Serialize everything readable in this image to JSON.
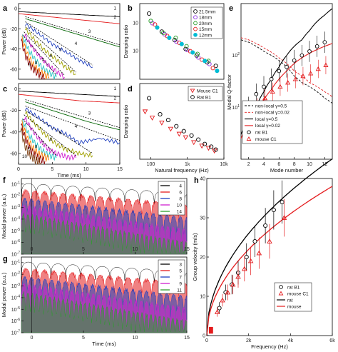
{
  "chart_data": [
    {
      "panel": "a",
      "type": "line",
      "xlabel": "",
      "ylabel": "Power (dB)",
      "xlim": [
        0,
        15
      ],
      "ylim": [
        -70,
        5
      ],
      "yticks": [
        -60,
        -40,
        -20,
        0
      ],
      "curve_labels": [
        "1",
        "2",
        "3",
        "4",
        "5",
        "6",
        "7",
        "8",
        "9"
      ],
      "colors": [
        "#000000",
        "#e41a1c",
        "#006400",
        "#1f3fbf",
        "#a0a000",
        "#d020d0",
        "#20c0c0",
        "#ff7f00",
        "#8b0000"
      ],
      "series": [
        {
          "name": "1",
          "x": [
            0,
            3,
            6,
            9,
            12,
            15
          ],
          "y": [
            -3,
            -4,
            -5,
            -6,
            -7,
            -8
          ]
        },
        {
          "name": "2",
          "x": [
            0,
            3,
            6,
            9,
            12,
            15
          ],
          "y": [
            -5,
            -7,
            -9,
            -11,
            -13,
            -15
          ]
        },
        {
          "name": "3",
          "x": [
            1,
            4,
            7,
            10,
            13,
            15
          ],
          "y": [
            -10,
            -16,
            -22,
            -28,
            -34,
            -38
          ]
        },
        {
          "name": "4",
          "x": [
            1,
            3,
            5,
            7,
            9,
            11
          ],
          "y": [
            -15,
            -25,
            -35,
            -43,
            -51,
            -58
          ]
        },
        {
          "name": "5",
          "x": [
            1,
            2.5,
            4,
            5.5,
            7,
            8.5
          ],
          "y": [
            -20,
            -32,
            -42,
            -50,
            -58,
            -65
          ]
        },
        {
          "name": "6",
          "x": [
            0.8,
            2,
            3.2,
            4.4,
            5.6,
            6.8
          ],
          "y": [
            -25,
            -38,
            -48,
            -56,
            -62,
            -68
          ]
        },
        {
          "name": "7",
          "x": [
            0.6,
            1.6,
            2.6,
            3.6,
            4.6,
            5.6
          ],
          "y": [
            -28,
            -42,
            -52,
            -59,
            -64,
            -68
          ]
        },
        {
          "name": "8",
          "x": [
            0.5,
            1.3,
            2.1,
            2.9,
            3.7,
            4.5
          ],
          "y": [
            -30,
            -45,
            -55,
            -61,
            -65,
            -68
          ]
        },
        {
          "name": "9",
          "x": [
            0.4,
            1.1,
            1.8,
            2.5,
            3.2,
            3.9
          ],
          "y": [
            -32,
            -48,
            -57,
            -62,
            -66,
            -69
          ]
        }
      ]
    },
    {
      "panel": "b",
      "type": "scatter",
      "xlabel": "",
      "ylabel": "Damping ratio",
      "xscale": "log",
      "yscale": "log",
      "xlim": [
        50,
        10000
      ],
      "ylim": [
        0.001,
        0.5
      ],
      "legend": [
        "21.5mm",
        "18mm",
        "20mm",
        "15mm",
        "12mm"
      ],
      "legend_colors": [
        "#000000",
        "#8a2be2",
        "#2ca02c",
        "#e41a1c",
        "#00bcd4"
      ],
      "series": [
        {
          "name": "21.5mm",
          "x": [
            90,
            200,
            450,
            900,
            1800,
            3500,
            6000
          ],
          "y": [
            0.22,
            0.05,
            0.025,
            0.012,
            0.007,
            0.004,
            0.003
          ]
        },
        {
          "name": "18mm",
          "x": [
            110,
            240,
            500,
            1000,
            2000,
            4000
          ],
          "y": [
            0.1,
            0.04,
            0.022,
            0.011,
            0.006,
            0.0035
          ]
        },
        {
          "name": "20mm",
          "x": [
            100,
            220,
            480,
            950,
            1900,
            3800
          ],
          "y": [
            0.12,
            0.045,
            0.03,
            0.015,
            0.008,
            0.0045
          ]
        },
        {
          "name": "15mm",
          "x": [
            130,
            280,
            600,
            1200,
            2500,
            5000
          ],
          "y": [
            0.09,
            0.035,
            0.02,
            0.01,
            0.005,
            0.0025
          ]
        },
        {
          "name": "12mm",
          "x": [
            150,
            320,
            700,
            1400,
            3000,
            6500
          ],
          "y": [
            0.07,
            0.03,
            0.018,
            0.009,
            0.0045,
            0.002
          ]
        }
      ]
    },
    {
      "panel": "c",
      "type": "line",
      "xlabel": "Time (ms)",
      "ylabel": "Power (dB)",
      "xlim": [
        0,
        15
      ],
      "ylim": [
        -70,
        5
      ],
      "xticks": [
        0,
        5,
        10,
        15
      ],
      "yticks": [
        -60,
        -40,
        -20,
        0
      ],
      "curve_labels": [
        "1",
        "2",
        "3",
        "4",
        "5",
        "6",
        "7",
        "8",
        "9",
        "10"
      ],
      "series": [
        {
          "name": "1",
          "x": [
            0,
            3,
            6,
            9,
            12,
            15
          ],
          "y": [
            -2,
            -3,
            -4,
            -5,
            -6,
            -7
          ]
        },
        {
          "name": "2",
          "x": [
            0,
            3,
            6,
            9,
            12,
            15
          ],
          "y": [
            -5,
            -7,
            -9,
            -11,
            -12,
            -13
          ]
        },
        {
          "name": "3",
          "x": [
            1,
            4,
            7,
            10,
            13,
            15
          ],
          "y": [
            -12,
            -18,
            -24,
            -30,
            -35,
            -38
          ]
        },
        {
          "name": "4",
          "x": [
            1,
            3,
            5,
            7,
            9,
            12,
            15
          ],
          "y": [
            -18,
            -27,
            -36,
            -42,
            -50,
            -46,
            -50
          ]
        },
        {
          "name": "5",
          "x": [
            1,
            2.5,
            4,
            5.5,
            7,
            9,
            11
          ],
          "y": [
            -22,
            -33,
            -43,
            -51,
            -56,
            -60,
            -62
          ]
        },
        {
          "name": "6",
          "x": [
            0.8,
            2,
            3.2,
            4.4,
            5.6,
            7,
            8.5
          ],
          "y": [
            -26,
            -38,
            -48,
            -56,
            -60,
            -63,
            -64
          ]
        },
        {
          "name": "7",
          "x": [
            0.6,
            1.6,
            2.6,
            3.6,
            4.6,
            5.6
          ],
          "y": [
            -30,
            -43,
            -52,
            -58,
            -62,
            -64
          ]
        },
        {
          "name": "8",
          "x": [
            0.5,
            1.3,
            2.1,
            2.9,
            3.7,
            4.5
          ],
          "y": [
            -32,
            -46,
            -55,
            -60,
            -63,
            -65
          ]
        },
        {
          "name": "9",
          "x": [
            0.4,
            1.1,
            1.8,
            2.5,
            3.2,
            3.9
          ],
          "y": [
            -34,
            -48,
            -57,
            -62,
            -65,
            -67
          ]
        },
        {
          "name": "10",
          "x": [
            0.3,
            0.9,
            1.5,
            2.1,
            2.7,
            3.3
          ],
          "y": [
            -36,
            -52,
            -60,
            -64,
            -67,
            -69
          ]
        }
      ]
    },
    {
      "panel": "d",
      "type": "scatter",
      "xlabel": "Natural frequency (Hz)",
      "ylabel": "Damping ratio",
      "xscale": "log",
      "yscale": "log",
      "xlim": [
        50,
        10000
      ],
      "ylim": [
        0.001,
        0.5
      ],
      "xticks": [
        "100",
        "1k",
        "10k"
      ],
      "legend": [
        "Mouse C1",
        "Rat B1"
      ],
      "series": [
        {
          "name": "Mouse C1",
          "x": [
            70,
            110,
            200,
            350,
            600,
            900,
            1500,
            2500,
            3800,
            5500
          ],
          "y": [
            0.05,
            0.03,
            0.02,
            0.012,
            0.008,
            0.006,
            0.004,
            0.003,
            0.0025,
            0.002
          ]
        },
        {
          "name": "Rat B1",
          "x": [
            90,
            180,
            300,
            500,
            800,
            1300,
            2000,
            3000,
            4500,
            6000
          ],
          "y": [
            0.15,
            0.04,
            0.025,
            0.015,
            0.01,
            0.007,
            0.005,
            0.0035,
            0.0028,
            0.0022
          ]
        }
      ]
    },
    {
      "panel": "e",
      "type": "line",
      "xlabel": "Mode number",
      "ylabel": "Modal Q-factor",
      "xlim": [
        1,
        13
      ],
      "yscale": "log",
      "ylim": [
        1,
        1000
      ],
      "xticks": [
        "2",
        "4",
        "6",
        "8",
        "10",
        "12"
      ],
      "yticks": [
        "10^1",
        "10^2"
      ],
      "legend": [
        "non-local γ=0.5",
        "non-local γ=0.02",
        "local γ=0.5",
        "local γ=0.02",
        "rat B1",
        "mouse C1"
      ],
      "series": [
        {
          "name": "non-local γ=0.5",
          "x": [
            1,
            2,
            3,
            4,
            5,
            6,
            7,
            8,
            9,
            10,
            11,
            12,
            13
          ],
          "y": [
            200,
            180,
            150,
            120,
            100,
            80,
            60,
            40,
            30,
            25,
            20,
            15,
            12
          ]
        },
        {
          "name": "non-local γ=0.02",
          "x": [
            1,
            2,
            3,
            4,
            5,
            6,
            7,
            8,
            9,
            10,
            11,
            12,
            13
          ],
          "y": [
            220,
            200,
            170,
            140,
            115,
            90,
            70,
            50,
            40,
            30,
            25,
            20,
            16
          ]
        },
        {
          "name": "local γ=0.5",
          "x": [
            1,
            2,
            3,
            4,
            5,
            6,
            7,
            8,
            9,
            10,
            11,
            12,
            13
          ],
          "y": [
            3,
            6,
            10,
            20,
            35,
            60,
            100,
            150,
            200,
            300,
            450,
            600,
            800
          ]
        },
        {
          "name": "local γ=0.02",
          "x": [
            1,
            2,
            3,
            4,
            5,
            6,
            7,
            8,
            9,
            10,
            11,
            12,
            13
          ],
          "y": [
            2.5,
            5,
            8,
            14,
            22,
            35,
            50,
            70,
            90,
            110,
            130,
            150,
            170
          ]
        },
        {
          "name": "rat B1",
          "x": [
            2,
            3,
            4,
            5,
            6,
            7,
            8,
            9,
            10,
            11,
            12
          ],
          "y": [
            10,
            18,
            25,
            35,
            50,
            60,
            80,
            100,
            120,
            150,
            180
          ]
        },
        {
          "name": "mouse C1",
          "x": [
            2,
            3,
            4,
            5,
            6,
            7,
            8,
            9,
            10,
            11,
            12
          ],
          "y": [
            6,
            10,
            15,
            20,
            25,
            30,
            35,
            40,
            45,
            55,
            65
          ]
        }
      ]
    },
    {
      "panel": "f",
      "type": "area",
      "xlabel": "",
      "ylabel": "Modal power (a.u.)",
      "xlim": [
        -1,
        15
      ],
      "yscale": "log",
      "ylim": [
        1e-07,
        0.3
      ],
      "xticks": [
        "0",
        "5",
        "10",
        "15"
      ],
      "yticks": [
        "10^-7",
        "10^-6",
        "10^-5",
        "10^-4",
        "10^-3",
        "10^-2",
        "10^-1"
      ],
      "legend": [
        "4",
        "6",
        "8",
        "10",
        "14"
      ]
    },
    {
      "panel": "g",
      "type": "area",
      "xlabel": "Time (ms)",
      "ylabel": "Modal power (a.u.)",
      "xlim": [
        -1,
        15
      ],
      "yscale": "log",
      "ylim": [
        1e-07,
        0.3
      ],
      "xticks": [
        "0",
        "5",
        "10",
        "15"
      ],
      "yticks": [
        "10^-7",
        "10^-6",
        "10^-5",
        "10^-4",
        "10^-3",
        "10^-2",
        "10^-1"
      ],
      "legend": [
        "3",
        "5",
        "7",
        "9",
        "11"
      ]
    },
    {
      "panel": "h",
      "type": "scatter",
      "xlabel": "Frequency (Hz)",
      "ylabel": "Group velocity (m/s)",
      "xlim": [
        0,
        6000
      ],
      "ylim": [
        0,
        40
      ],
      "xticks": [
        "0",
        "2k",
        "4k",
        "6k"
      ],
      "yticks": [
        "0",
        "10",
        "20",
        "30",
        "40"
      ],
      "legend": [
        "rat B1",
        "mouse C1",
        "rat",
        "mouse"
      ],
      "series": [
        {
          "name": "rat B1",
          "x": [
            600,
            900,
            1200,
            1500,
            1900,
            2300,
            2800,
            3200,
            3600
          ],
          "y": [
            7,
            11,
            13,
            16,
            20,
            24,
            28,
            32,
            34
          ]
        },
        {
          "name": "mouse C1",
          "x": [
            500,
            750,
            1000,
            1250,
            1500,
            1800,
            2100,
            2500,
            3000,
            3700
          ],
          "y": [
            6,
            9,
            11,
            13,
            15,
            17,
            19,
            21,
            24,
            30
          ]
        },
        {
          "name": "rat",
          "x": [
            0,
            500,
            1000,
            2000,
            3000,
            4000,
            5000,
            6000
          ],
          "y": [
            0,
            9,
            14,
            22,
            29,
            35,
            40,
            45
          ]
        },
        {
          "name": "mouse",
          "x": [
            0,
            500,
            1000,
            2000,
            3000,
            4000,
            5000,
            6000
          ],
          "y": [
            0,
            6,
            10,
            17,
            23,
            29,
            34,
            38
          ]
        }
      ]
    }
  ]
}
